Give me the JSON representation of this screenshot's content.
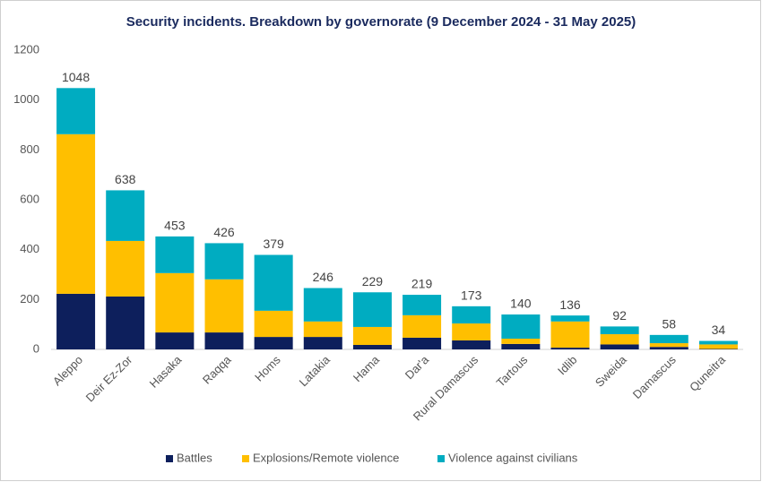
{
  "chart_data": {
    "type": "stacked-bar",
    "title": "Security incidents. Breakdown by governorate (9 December 2024 - 31 May 2025)",
    "categories": [
      "Aleppo",
      "Deir Ez-Zor",
      "Hasaka",
      "Raqqa",
      "Homs",
      "Latakia",
      "Hama",
      "Dar'a",
      "Rural Damascus",
      "Tartous",
      "Idlib",
      "Sweida",
      "Damascus",
      "Quneitra"
    ],
    "series": [
      {
        "name": "Battles",
        "color": "#0d1f5c",
        "values": [
          223,
          212,
          68,
          68,
          50,
          50,
          18,
          47,
          36,
          22,
          7,
          20,
          10,
          2
        ]
      },
      {
        "name": "Explosions/Remote violence",
        "color": "#ffbf00",
        "values": [
          640,
          223,
          238,
          213,
          105,
          62,
          72,
          90,
          68,
          21,
          105,
          41,
          15,
          18
        ]
      },
      {
        "name": "Violence against civilians",
        "color": "#00acc1",
        "values": [
          185,
          203,
          147,
          145,
          224,
          134,
          139,
          82,
          69,
          97,
          24,
          31,
          33,
          14
        ]
      }
    ],
    "totals": [
      1048,
      638,
      453,
      426,
      379,
      246,
      229,
      219,
      173,
      140,
      136,
      92,
      58,
      34
    ],
    "ylim": [
      0,
      1200
    ],
    "yticks": [
      0,
      200,
      400,
      600,
      800,
      1000,
      1200
    ],
    "grid": false,
    "legend": "bottom"
  }
}
